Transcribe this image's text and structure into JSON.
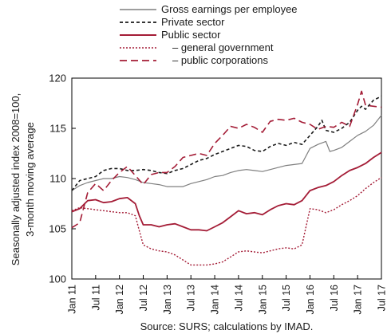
{
  "chart_data": {
    "type": "line",
    "title": "",
    "xlabel": "",
    "ylabel": [
      "Seasonally adjusted index 2008=100,",
      "3-month moving average"
    ],
    "ylim": [
      100,
      120
    ],
    "yticks": [
      100,
      105,
      110,
      115,
      120
    ],
    "grid": false,
    "legend_position": "top-left",
    "source": "Source: SURS; calculations by IMAD.",
    "x_ticks": [
      "Jan 11",
      "Jul 11",
      "Jan 12",
      "Jul 12",
      "Jan 13",
      "Jul 13",
      "Jan 14",
      "Jul 14",
      "Jan 15",
      "Jul 15",
      "Jan 16",
      "Jul 16",
      "Jan 17",
      "Jul 17"
    ],
    "x_range": [
      "2011-01",
      "2017-07"
    ],
    "series": [
      {
        "name": "Gross earnings per employee",
        "color": "#7f7f7f",
        "dash": "solid",
        "width": 1.2,
        "points": [
          [
            "2011-01",
            108.8
          ],
          [
            "2011-03",
            109.3
          ],
          [
            "2011-05",
            109.6
          ],
          [
            "2011-07",
            109.8
          ],
          [
            "2011-09",
            110.0
          ],
          [
            "2011-11",
            110.0
          ],
          [
            "2012-01",
            110.2
          ],
          [
            "2012-03",
            110.1
          ],
          [
            "2012-05",
            109.9
          ],
          [
            "2012-07",
            109.6
          ],
          [
            "2012-09",
            109.5
          ],
          [
            "2012-11",
            109.4
          ],
          [
            "2013-01",
            109.2
          ],
          [
            "2013-03",
            109.2
          ],
          [
            "2013-05",
            109.2
          ],
          [
            "2013-07",
            109.5
          ],
          [
            "2013-09",
            109.7
          ],
          [
            "2013-11",
            109.9
          ],
          [
            "2014-01",
            110.2
          ],
          [
            "2014-03",
            110.3
          ],
          [
            "2014-05",
            110.6
          ],
          [
            "2014-07",
            110.8
          ],
          [
            "2014-09",
            110.9
          ],
          [
            "2014-11",
            110.8
          ],
          [
            "2015-01",
            110.7
          ],
          [
            "2015-03",
            110.9
          ],
          [
            "2015-05",
            111.1
          ],
          [
            "2015-07",
            111.3
          ],
          [
            "2015-09",
            111.4
          ],
          [
            "2015-11",
            111.5
          ],
          [
            "2016-01",
            113.0
          ],
          [
            "2016-03",
            113.4
          ],
          [
            "2016-05",
            113.7
          ],
          [
            "2016-06",
            112.7
          ],
          [
            "2016-07",
            112.8
          ],
          [
            "2016-09",
            113.1
          ],
          [
            "2016-11",
            113.7
          ],
          [
            "2017-01",
            114.3
          ],
          [
            "2017-03",
            114.7
          ],
          [
            "2017-05",
            115.3
          ],
          [
            "2017-07",
            116.3
          ]
        ]
      },
      {
        "name": "Private sector",
        "color": "#1a1a1a",
        "dash": "4,3",
        "width": 1.6,
        "points": [
          [
            "2011-01",
            108.8
          ],
          [
            "2011-03",
            109.8
          ],
          [
            "2011-05",
            110.0
          ],
          [
            "2011-07",
            110.2
          ],
          [
            "2011-09",
            110.8
          ],
          [
            "2011-11",
            111.0
          ],
          [
            "2012-01",
            111.0
          ],
          [
            "2012-03",
            110.8
          ],
          [
            "2012-05",
            110.8
          ],
          [
            "2012-07",
            110.9
          ],
          [
            "2012-09",
            110.8
          ],
          [
            "2012-11",
            110.6
          ],
          [
            "2013-01",
            110.5
          ],
          [
            "2013-03",
            110.8
          ],
          [
            "2013-05",
            111.0
          ],
          [
            "2013-07",
            111.4
          ],
          [
            "2013-09",
            111.8
          ],
          [
            "2013-11",
            112.0
          ],
          [
            "2014-01",
            112.4
          ],
          [
            "2014-03",
            112.7
          ],
          [
            "2014-05",
            113.0
          ],
          [
            "2014-07",
            113.3
          ],
          [
            "2014-09",
            113.2
          ],
          [
            "2014-11",
            112.8
          ],
          [
            "2015-01",
            112.7
          ],
          [
            "2015-03",
            113.2
          ],
          [
            "2015-05",
            113.5
          ],
          [
            "2015-07",
            113.3
          ],
          [
            "2015-09",
            113.6
          ],
          [
            "2015-11",
            113.4
          ],
          [
            "2016-01",
            114.3
          ],
          [
            "2016-03",
            115.2
          ],
          [
            "2016-04",
            115.8
          ],
          [
            "2016-05",
            114.8
          ],
          [
            "2016-07",
            114.6
          ],
          [
            "2016-09",
            115.0
          ],
          [
            "2016-11",
            115.6
          ],
          [
            "2017-01",
            116.8
          ],
          [
            "2017-02",
            117.2
          ],
          [
            "2017-03",
            116.9
          ],
          [
            "2017-05",
            117.8
          ],
          [
            "2017-07",
            118.2
          ]
        ]
      },
      {
        "name": "Public sector",
        "color": "#a41c36",
        "dash": "solid",
        "width": 1.8,
        "points": [
          [
            "2011-01",
            106.7
          ],
          [
            "2011-03",
            107.0
          ],
          [
            "2011-05",
            107.8
          ],
          [
            "2011-07",
            107.9
          ],
          [
            "2011-09",
            107.6
          ],
          [
            "2011-11",
            107.7
          ],
          [
            "2012-01",
            108.0
          ],
          [
            "2012-03",
            108.1
          ],
          [
            "2012-05",
            107.5
          ],
          [
            "2012-06",
            106.3
          ],
          [
            "2012-07",
            105.4
          ],
          [
            "2012-09",
            105.4
          ],
          [
            "2012-11",
            105.2
          ],
          [
            "2013-01",
            105.4
          ],
          [
            "2013-03",
            105.5
          ],
          [
            "2013-05",
            105.2
          ],
          [
            "2013-07",
            104.9
          ],
          [
            "2013-09",
            104.9
          ],
          [
            "2013-11",
            104.8
          ],
          [
            "2014-01",
            105.2
          ],
          [
            "2014-03",
            105.6
          ],
          [
            "2014-05",
            106.2
          ],
          [
            "2014-07",
            106.8
          ],
          [
            "2014-09",
            106.5
          ],
          [
            "2014-11",
            106.6
          ],
          [
            "2015-01",
            106.4
          ],
          [
            "2015-03",
            106.9
          ],
          [
            "2015-05",
            107.3
          ],
          [
            "2015-07",
            107.5
          ],
          [
            "2015-09",
            107.4
          ],
          [
            "2015-11",
            107.8
          ],
          [
            "2016-01",
            108.8
          ],
          [
            "2016-03",
            109.1
          ],
          [
            "2016-05",
            109.3
          ],
          [
            "2016-07",
            109.7
          ],
          [
            "2016-09",
            110.3
          ],
          [
            "2016-11",
            110.8
          ],
          [
            "2017-01",
            111.1
          ],
          [
            "2017-03",
            111.5
          ],
          [
            "2017-05",
            112.1
          ],
          [
            "2017-07",
            112.6
          ]
        ]
      },
      {
        "name": "– general government",
        "color": "#a41c36",
        "dash": "2,2",
        "width": 1.4,
        "points": [
          [
            "2011-01",
            106.8
          ],
          [
            "2011-03",
            107.1
          ],
          [
            "2011-05",
            107.0
          ],
          [
            "2011-07",
            106.9
          ],
          [
            "2011-09",
            106.8
          ],
          [
            "2011-11",
            106.7
          ],
          [
            "2012-01",
            106.6
          ],
          [
            "2012-03",
            106.6
          ],
          [
            "2012-05",
            106.3
          ],
          [
            "2012-06",
            104.8
          ],
          [
            "2012-07",
            103.4
          ],
          [
            "2012-09",
            103.0
          ],
          [
            "2012-11",
            102.8
          ],
          [
            "2013-01",
            102.7
          ],
          [
            "2013-03",
            102.4
          ],
          [
            "2013-05",
            101.9
          ],
          [
            "2013-07",
            101.4
          ],
          [
            "2013-09",
            101.4
          ],
          [
            "2013-11",
            101.4
          ],
          [
            "2014-01",
            101.5
          ],
          [
            "2014-03",
            101.7
          ],
          [
            "2014-05",
            102.2
          ],
          [
            "2014-07",
            102.7
          ],
          [
            "2014-09",
            102.8
          ],
          [
            "2014-11",
            102.7
          ],
          [
            "2015-01",
            102.6
          ],
          [
            "2015-03",
            102.8
          ],
          [
            "2015-05",
            103.0
          ],
          [
            "2015-07",
            103.1
          ],
          [
            "2015-09",
            103.0
          ],
          [
            "2015-11",
            103.4
          ],
          [
            "2016-01",
            107.0
          ],
          [
            "2016-03",
            106.9
          ],
          [
            "2016-05",
            106.6
          ],
          [
            "2016-07",
            106.9
          ],
          [
            "2016-09",
            107.4
          ],
          [
            "2016-11",
            107.8
          ],
          [
            "2017-01",
            108.3
          ],
          [
            "2017-03",
            109.0
          ],
          [
            "2017-05",
            109.6
          ],
          [
            "2017-07",
            110.1
          ]
        ]
      },
      {
        "name": "– public corporations",
        "color": "#a41c36",
        "dash": "9,5",
        "width": 1.6,
        "points": [
          [
            "2011-01",
            105.1
          ],
          [
            "2011-03",
            105.6
          ],
          [
            "2011-05",
            108.6
          ],
          [
            "2011-07",
            109.5
          ],
          [
            "2011-09",
            108.8
          ],
          [
            "2011-11",
            109.8
          ],
          [
            "2012-01",
            110.6
          ],
          [
            "2012-03",
            111.2
          ],
          [
            "2012-05",
            110.3
          ],
          [
            "2012-07",
            109.4
          ],
          [
            "2012-09",
            110.4
          ],
          [
            "2012-11",
            110.6
          ],
          [
            "2013-01",
            110.6
          ],
          [
            "2013-03",
            111.2
          ],
          [
            "2013-05",
            112.1
          ],
          [
            "2013-07",
            112.3
          ],
          [
            "2013-09",
            112.5
          ],
          [
            "2013-11",
            112.3
          ],
          [
            "2014-01",
            113.5
          ],
          [
            "2014-03",
            114.3
          ],
          [
            "2014-05",
            115.2
          ],
          [
            "2014-07",
            115.0
          ],
          [
            "2014-09",
            115.4
          ],
          [
            "2014-11",
            115.1
          ],
          [
            "2015-01",
            114.6
          ],
          [
            "2015-03",
            115.7
          ],
          [
            "2015-05",
            115.9
          ],
          [
            "2015-07",
            115.8
          ],
          [
            "2015-09",
            116.0
          ],
          [
            "2015-11",
            115.6
          ],
          [
            "2016-01",
            115.4
          ],
          [
            "2016-03",
            114.9
          ],
          [
            "2016-05",
            115.2
          ],
          [
            "2016-07",
            115.1
          ],
          [
            "2016-09",
            115.6
          ],
          [
            "2016-11",
            115.2
          ],
          [
            "2017-01",
            117.4
          ],
          [
            "2017-02",
            118.7
          ],
          [
            "2017-03",
            117.3
          ],
          [
            "2017-05",
            117.2
          ],
          [
            "2017-07",
            117.1
          ]
        ]
      }
    ]
  }
}
